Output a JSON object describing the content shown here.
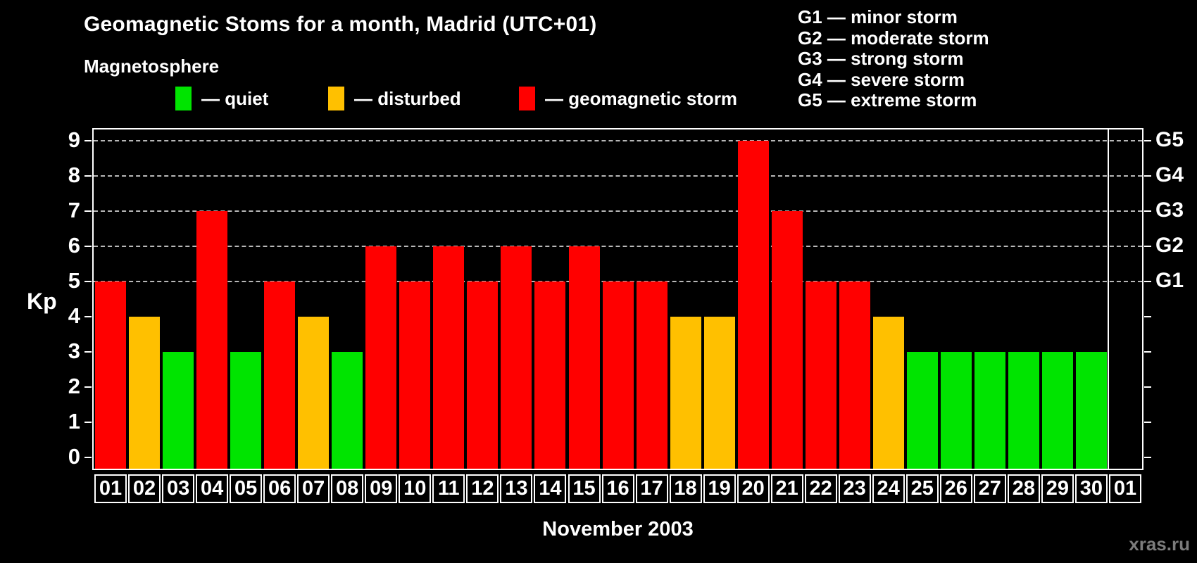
{
  "header": {
    "title": "Geomagnetic Stoms for a month, Madrid (UTC+01)",
    "subtitle": "Magnetosphere"
  },
  "legend": {
    "items": [
      {
        "name": "quiet",
        "color": "#00e400",
        "label": "— quiet"
      },
      {
        "name": "disturbed",
        "color": "#ffc000",
        "label": "— disturbed"
      },
      {
        "name": "storm",
        "color": "#ff0000",
        "label": "— geomagnetic storm"
      }
    ]
  },
  "g_legend": {
    "lines": [
      "G1 — minor storm",
      "G2 — moderate storm",
      "G3 — strong storm",
      "G4 — severe storm",
      "G5 — extreme storm"
    ]
  },
  "chart_data": {
    "type": "bar",
    "title": "Geomagnetic Stoms for a month, Madrid (UTC+01)",
    "xlabel": "November 2003",
    "ylabel": "Kp",
    "ylim": [
      0,
      9
    ],
    "grid": "dashed horizontal lines at Kp 5..9 (storm levels G1..G5)",
    "legend_position": "top",
    "categories": [
      "01",
      "02",
      "03",
      "04",
      "05",
      "06",
      "07",
      "08",
      "09",
      "10",
      "11",
      "12",
      "13",
      "14",
      "15",
      "16",
      "17",
      "18",
      "19",
      "20",
      "21",
      "22",
      "23",
      "24",
      "25",
      "26",
      "27",
      "28",
      "29",
      "30",
      "01"
    ],
    "values": [
      5,
      4,
      3,
      7,
      3,
      5,
      4,
      3,
      6,
      5,
      6,
      5,
      6,
      5,
      6,
      5,
      5,
      4,
      4,
      9,
      7,
      5,
      5,
      4,
      3,
      3,
      3,
      3,
      3,
      3,
      null
    ],
    "bar_states": [
      "storm",
      "disturbed",
      "quiet",
      "storm",
      "quiet",
      "storm",
      "disturbed",
      "quiet",
      "storm",
      "storm",
      "storm",
      "storm",
      "storm",
      "storm",
      "storm",
      "storm",
      "storm",
      "disturbed",
      "disturbed",
      "storm",
      "storm",
      "storm",
      "storm",
      "disturbed",
      "quiet",
      "quiet",
      "quiet",
      "quiet",
      "quiet",
      "quiet",
      null
    ],
    "y_ticks_left": [
      0,
      1,
      2,
      3,
      4,
      5,
      6,
      7,
      8,
      9
    ],
    "y_gridlines": [
      5,
      6,
      7,
      8,
      9
    ],
    "right_axis_labels": [
      {
        "label": "G1",
        "kp": 5
      },
      {
        "label": "G2",
        "kp": 6
      },
      {
        "label": "G3",
        "kp": 7
      },
      {
        "label": "G4",
        "kp": 8
      },
      {
        "label": "G5",
        "kp": 9
      }
    ],
    "month_separator_after_index": 29
  },
  "footer": {
    "month_label": "November 2003",
    "watermark": "xras.ru"
  }
}
